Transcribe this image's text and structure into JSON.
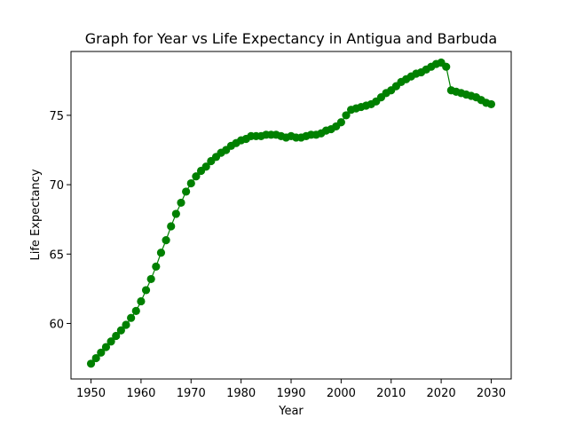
{
  "chart_data": {
    "type": "line",
    "title": "Graph for Year vs Life Expectancy in Antigua and Barbuda",
    "xlabel": "Year",
    "ylabel": "Life Expectancy",
    "xlim": [
      1946,
      2034
    ],
    "ylim": [
      56.0,
      79.6
    ],
    "xticks": [
      1950,
      1960,
      1970,
      1980,
      1990,
      2000,
      2010,
      2020,
      2030
    ],
    "yticks": [
      60,
      65,
      70,
      75
    ],
    "grid": false,
    "legend": "none",
    "marker": "circle",
    "series": [
      {
        "color": "#008000",
        "x": [
          1950,
          1951,
          1952,
          1953,
          1954,
          1955,
          1956,
          1957,
          1958,
          1959,
          1960,
          1961,
          1962,
          1963,
          1964,
          1965,
          1966,
          1967,
          1968,
          1969,
          1970,
          1971,
          1972,
          1973,
          1974,
          1975,
          1976,
          1977,
          1978,
          1979,
          1980,
          1981,
          1982,
          1983,
          1984,
          1985,
          1986,
          1987,
          1988,
          1989,
          1990,
          1991,
          1992,
          1993,
          1994,
          1995,
          1996,
          1997,
          1998,
          1999,
          2000,
          2001,
          2002,
          2003,
          2004,
          2005,
          2006,
          2007,
          2008,
          2009,
          2010,
          2011,
          2012,
          2013,
          2014,
          2015,
          2016,
          2017,
          2018,
          2019,
          2020,
          2021,
          2022,
          2023,
          2024,
          2025,
          2026,
          2027,
          2028,
          2029,
          2030
        ],
        "y": [
          57.1,
          57.5,
          57.9,
          58.3,
          58.7,
          59.1,
          59.5,
          59.9,
          60.4,
          60.9,
          61.6,
          62.4,
          63.2,
          64.1,
          65.1,
          66.0,
          67.0,
          67.9,
          68.7,
          69.5,
          70.1,
          70.6,
          71.0,
          71.3,
          71.7,
          72.0,
          72.3,
          72.5,
          72.8,
          73.0,
          73.2,
          73.3,
          73.5,
          73.5,
          73.5,
          73.6,
          73.6,
          73.6,
          73.5,
          73.4,
          73.5,
          73.4,
          73.4,
          73.5,
          73.6,
          73.6,
          73.7,
          73.9,
          74.0,
          74.2,
          74.5,
          75.0,
          75.4,
          75.5,
          75.6,
          75.7,
          75.8,
          76.0,
          76.3,
          76.6,
          76.8,
          77.1,
          77.4,
          77.6,
          77.8,
          78.0,
          78.1,
          78.3,
          78.5,
          78.7,
          78.8,
          78.5,
          76.8,
          76.7,
          76.6,
          76.5,
          76.4,
          76.3,
          76.1,
          75.9,
          75.8
        ]
      }
    ]
  }
}
